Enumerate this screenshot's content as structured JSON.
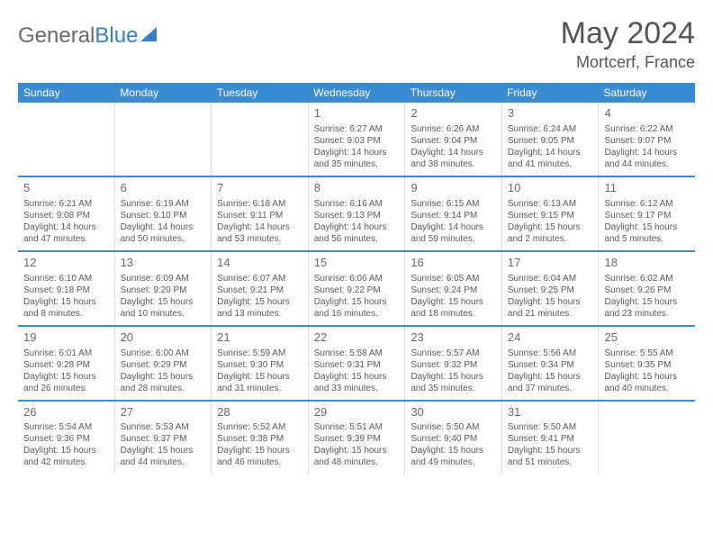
{
  "logo": {
    "text1": "General",
    "text2": "Blue"
  },
  "title": {
    "month": "May 2024",
    "location": "Mortcerf, France"
  },
  "colors": {
    "header_bg": "#3b8bd0",
    "header_text": "#ffffff",
    "body_text": "#5a5a5a",
    "divider": "#3b8bd0",
    "cell_border": "#dcdcdc",
    "background": "#ffffff"
  },
  "dow": [
    "Sunday",
    "Monday",
    "Tuesday",
    "Wednesday",
    "Thursday",
    "Friday",
    "Saturday"
  ],
  "weeks": [
    [
      {
        "n": "",
        "sr": "",
        "ss": "",
        "dl": ""
      },
      {
        "n": "",
        "sr": "",
        "ss": "",
        "dl": ""
      },
      {
        "n": "",
        "sr": "",
        "ss": "",
        "dl": ""
      },
      {
        "n": "1",
        "sr": "Sunrise: 6:27 AM",
        "ss": "Sunset: 9:03 PM",
        "dl": "Daylight: 14 hours and 35 minutes."
      },
      {
        "n": "2",
        "sr": "Sunrise: 6:26 AM",
        "ss": "Sunset: 9:04 PM",
        "dl": "Daylight: 14 hours and 38 minutes."
      },
      {
        "n": "3",
        "sr": "Sunrise: 6:24 AM",
        "ss": "Sunset: 9:05 PM",
        "dl": "Daylight: 14 hours and 41 minutes."
      },
      {
        "n": "4",
        "sr": "Sunrise: 6:22 AM",
        "ss": "Sunset: 9:07 PM",
        "dl": "Daylight: 14 hours and 44 minutes."
      }
    ],
    [
      {
        "n": "5",
        "sr": "Sunrise: 6:21 AM",
        "ss": "Sunset: 9:08 PM",
        "dl": "Daylight: 14 hours and 47 minutes."
      },
      {
        "n": "6",
        "sr": "Sunrise: 6:19 AM",
        "ss": "Sunset: 9:10 PM",
        "dl": "Daylight: 14 hours and 50 minutes."
      },
      {
        "n": "7",
        "sr": "Sunrise: 6:18 AM",
        "ss": "Sunset: 9:11 PM",
        "dl": "Daylight: 14 hours and 53 minutes."
      },
      {
        "n": "8",
        "sr": "Sunrise: 6:16 AM",
        "ss": "Sunset: 9:13 PM",
        "dl": "Daylight: 14 hours and 56 minutes."
      },
      {
        "n": "9",
        "sr": "Sunrise: 6:15 AM",
        "ss": "Sunset: 9:14 PM",
        "dl": "Daylight: 14 hours and 59 minutes."
      },
      {
        "n": "10",
        "sr": "Sunrise: 6:13 AM",
        "ss": "Sunset: 9:15 PM",
        "dl": "Daylight: 15 hours and 2 minutes."
      },
      {
        "n": "11",
        "sr": "Sunrise: 6:12 AM",
        "ss": "Sunset: 9:17 PM",
        "dl": "Daylight: 15 hours and 5 minutes."
      }
    ],
    [
      {
        "n": "12",
        "sr": "Sunrise: 6:10 AM",
        "ss": "Sunset: 9:18 PM",
        "dl": "Daylight: 15 hours and 8 minutes."
      },
      {
        "n": "13",
        "sr": "Sunrise: 6:09 AM",
        "ss": "Sunset: 9:20 PM",
        "dl": "Daylight: 15 hours and 10 minutes."
      },
      {
        "n": "14",
        "sr": "Sunrise: 6:07 AM",
        "ss": "Sunset: 9:21 PM",
        "dl": "Daylight: 15 hours and 13 minutes."
      },
      {
        "n": "15",
        "sr": "Sunrise: 6:06 AM",
        "ss": "Sunset: 9:22 PM",
        "dl": "Daylight: 15 hours and 16 minutes."
      },
      {
        "n": "16",
        "sr": "Sunrise: 6:05 AM",
        "ss": "Sunset: 9:24 PM",
        "dl": "Daylight: 15 hours and 18 minutes."
      },
      {
        "n": "17",
        "sr": "Sunrise: 6:04 AM",
        "ss": "Sunset: 9:25 PM",
        "dl": "Daylight: 15 hours and 21 minutes."
      },
      {
        "n": "18",
        "sr": "Sunrise: 6:02 AM",
        "ss": "Sunset: 9:26 PM",
        "dl": "Daylight: 15 hours and 23 minutes."
      }
    ],
    [
      {
        "n": "19",
        "sr": "Sunrise: 6:01 AM",
        "ss": "Sunset: 9:28 PM",
        "dl": "Daylight: 15 hours and 26 minutes."
      },
      {
        "n": "20",
        "sr": "Sunrise: 6:00 AM",
        "ss": "Sunset: 9:29 PM",
        "dl": "Daylight: 15 hours and 28 minutes."
      },
      {
        "n": "21",
        "sr": "Sunrise: 5:59 AM",
        "ss": "Sunset: 9:30 PM",
        "dl": "Daylight: 15 hours and 31 minutes."
      },
      {
        "n": "22",
        "sr": "Sunrise: 5:58 AM",
        "ss": "Sunset: 9:31 PM",
        "dl": "Daylight: 15 hours and 33 minutes."
      },
      {
        "n": "23",
        "sr": "Sunrise: 5:57 AM",
        "ss": "Sunset: 9:32 PM",
        "dl": "Daylight: 15 hours and 35 minutes."
      },
      {
        "n": "24",
        "sr": "Sunrise: 5:56 AM",
        "ss": "Sunset: 9:34 PM",
        "dl": "Daylight: 15 hours and 37 minutes."
      },
      {
        "n": "25",
        "sr": "Sunrise: 5:55 AM",
        "ss": "Sunset: 9:35 PM",
        "dl": "Daylight: 15 hours and 40 minutes."
      }
    ],
    [
      {
        "n": "26",
        "sr": "Sunrise: 5:54 AM",
        "ss": "Sunset: 9:36 PM",
        "dl": "Daylight: 15 hours and 42 minutes."
      },
      {
        "n": "27",
        "sr": "Sunrise: 5:53 AM",
        "ss": "Sunset: 9:37 PM",
        "dl": "Daylight: 15 hours and 44 minutes."
      },
      {
        "n": "28",
        "sr": "Sunrise: 5:52 AM",
        "ss": "Sunset: 9:38 PM",
        "dl": "Daylight: 15 hours and 46 minutes."
      },
      {
        "n": "29",
        "sr": "Sunrise: 5:51 AM",
        "ss": "Sunset: 9:39 PM",
        "dl": "Daylight: 15 hours and 48 minutes."
      },
      {
        "n": "30",
        "sr": "Sunrise: 5:50 AM",
        "ss": "Sunset: 9:40 PM",
        "dl": "Daylight: 15 hours and 49 minutes."
      },
      {
        "n": "31",
        "sr": "Sunrise: 5:50 AM",
        "ss": "Sunset: 9:41 PM",
        "dl": "Daylight: 15 hours and 51 minutes."
      },
      {
        "n": "",
        "sr": "",
        "ss": "",
        "dl": ""
      }
    ]
  ]
}
